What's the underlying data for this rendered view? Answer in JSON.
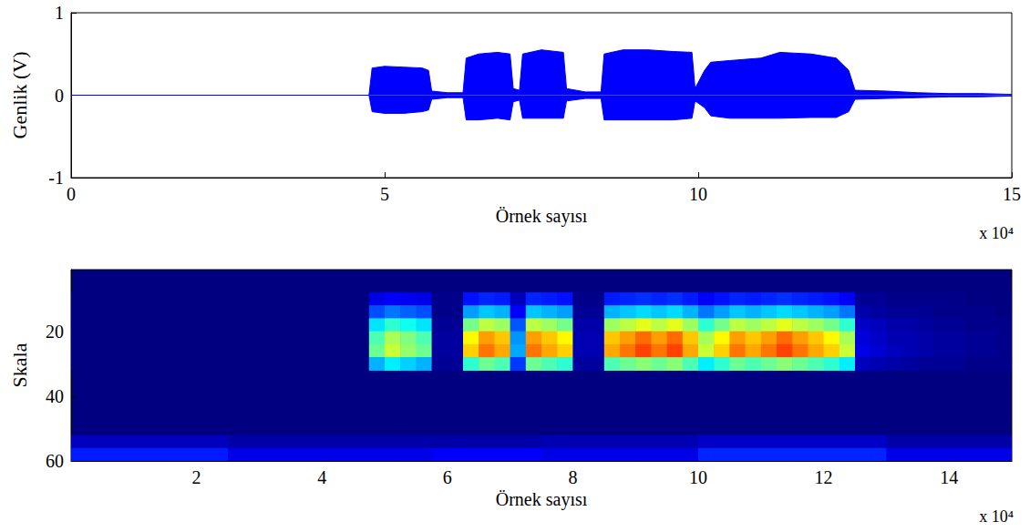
{
  "chart_data": [
    {
      "type": "line",
      "ylabel": "Genlik (V)",
      "xlabel": "Örnek sayısı",
      "x_scale_label": "x 10⁴",
      "color": "#0000ff",
      "grid": false,
      "xlim": [
        0,
        15
      ],
      "xticks": [
        0,
        5,
        10,
        15
      ],
      "ylim": [
        -1,
        1
      ],
      "yticks": [
        -1,
        0,
        1
      ],
      "x": [
        0,
        4.75,
        4.8,
        5.0,
        5.3,
        5.6,
        5.7,
        5.75,
        6.0,
        6.25,
        6.3,
        6.5,
        6.8,
        7.0,
        7.05,
        7.15,
        7.2,
        7.5,
        7.85,
        7.9,
        8.2,
        8.45,
        8.5,
        8.8,
        9.2,
        9.6,
        9.9,
        9.95,
        10.1,
        10.2,
        10.5,
        11.0,
        11.3,
        11.8,
        12.2,
        12.4,
        12.5,
        13.0,
        13.5,
        14.0,
        14.5,
        15
      ],
      "upper": [
        0,
        0,
        0.33,
        0.35,
        0.34,
        0.33,
        0.3,
        0.05,
        0.03,
        0.03,
        0.45,
        0.5,
        0.52,
        0.5,
        0.08,
        0.06,
        0.5,
        0.55,
        0.52,
        0.08,
        0.04,
        0.04,
        0.5,
        0.55,
        0.55,
        0.53,
        0.52,
        0.08,
        0.3,
        0.4,
        0.42,
        0.45,
        0.52,
        0.5,
        0.45,
        0.3,
        0.06,
        0.05,
        0.03,
        0.02,
        0.02,
        0.01
      ],
      "lower": [
        0,
        0,
        -0.2,
        -0.22,
        -0.22,
        -0.2,
        -0.18,
        -0.05,
        -0.03,
        -0.03,
        -0.3,
        -0.3,
        -0.28,
        -0.3,
        -0.08,
        -0.06,
        -0.28,
        -0.28,
        -0.28,
        -0.07,
        -0.04,
        -0.04,
        -0.3,
        -0.3,
        -0.3,
        -0.3,
        -0.28,
        -0.07,
        -0.15,
        -0.25,
        -0.28,
        -0.28,
        -0.28,
        -0.27,
        -0.27,
        -0.2,
        -0.05,
        -0.04,
        -0.03,
        -0.02,
        -0.02,
        -0.01
      ]
    },
    {
      "type": "heatmap",
      "ylabel": "Skala",
      "xlabel": "Örnek sayısı",
      "x_scale_label": "x 10⁴",
      "grid": false,
      "xlim": [
        0,
        15
      ],
      "xticks": [
        2,
        4,
        6,
        8,
        10,
        12,
        14
      ],
      "ylim": [
        1,
        60
      ],
      "yticks": [
        20,
        40,
        60
      ],
      "zlim": [
        0,
        1
      ],
      "x_edges": [
        0,
        0.25,
        0.5,
        0.75,
        1,
        1.25,
        1.5,
        1.75,
        2,
        2.25,
        2.5,
        2.75,
        3,
        3.25,
        3.5,
        3.75,
        4,
        4.25,
        4.5,
        4.75,
        5,
        5.25,
        5.5,
        5.75,
        6,
        6.25,
        6.5,
        6.75,
        7,
        7.25,
        7.5,
        7.75,
        8,
        8.25,
        8.5,
        8.75,
        9,
        9.25,
        9.5,
        9.75,
        10,
        10.25,
        10.5,
        10.75,
        11,
        11.25,
        11.5,
        11.75,
        12,
        12.25,
        12.5,
        12.75,
        13,
        13.25,
        13.5,
        13.75,
        14,
        14.25,
        14.5,
        14.75,
        15
      ],
      "rows": [
        {
          "scale": [
            8,
            12
          ],
          "values": [
            0,
            0,
            0,
            0,
            0,
            0,
            0,
            0,
            0,
            0,
            0,
            0,
            0,
            0,
            0,
            0,
            0,
            0,
            0,
            0.1,
            0.12,
            0.11,
            0.1,
            0.01,
            0.01,
            0.14,
            0.16,
            0.15,
            0.06,
            0.16,
            0.15,
            0.14,
            0.01,
            0.01,
            0.15,
            0.16,
            0.17,
            0.16,
            0.17,
            0.15,
            0.12,
            0.14,
            0.16,
            0.15,
            0.16,
            0.17,
            0.16,
            0.15,
            0.14,
            0.12,
            0.02,
            0.02,
            0.01,
            0.01,
            0.01,
            0.01,
            0.01,
            0,
            0,
            0
          ]
        },
        {
          "scale": [
            12,
            16
          ],
          "values": [
            0,
            0,
            0,
            0,
            0,
            0,
            0,
            0,
            0,
            0,
            0,
            0,
            0,
            0,
            0,
            0,
            0,
            0,
            0,
            0.2,
            0.24,
            0.22,
            0.2,
            0.01,
            0.01,
            0.28,
            0.32,
            0.3,
            0.12,
            0.32,
            0.3,
            0.28,
            0.02,
            0.02,
            0.3,
            0.32,
            0.34,
            0.32,
            0.34,
            0.3,
            0.24,
            0.28,
            0.32,
            0.3,
            0.32,
            0.34,
            0.32,
            0.3,
            0.28,
            0.24,
            0.04,
            0.03,
            0.02,
            0.02,
            0.02,
            0.01,
            0.01,
            0.01,
            0.01,
            0
          ]
        },
        {
          "scale": [
            16,
            20
          ],
          "values": [
            0,
            0,
            0,
            0,
            0,
            0,
            0,
            0,
            0,
            0,
            0,
            0,
            0,
            0,
            0,
            0,
            0,
            0,
            0,
            0.35,
            0.42,
            0.39,
            0.35,
            0.02,
            0.02,
            0.49,
            0.56,
            0.53,
            0.21,
            0.56,
            0.53,
            0.49,
            0.04,
            0.04,
            0.53,
            0.56,
            0.6,
            0.56,
            0.6,
            0.53,
            0.42,
            0.49,
            0.56,
            0.53,
            0.56,
            0.6,
            0.56,
            0.53,
            0.49,
            0.42,
            0.07,
            0.06,
            0.04,
            0.04,
            0.03,
            0.02,
            0.02,
            0.01,
            0.01,
            0.01
          ]
        },
        {
          "scale": [
            20,
            24
          ],
          "values": [
            0,
            0,
            0,
            0,
            0,
            0,
            0,
            0,
            0,
            0,
            0,
            0,
            0,
            0,
            0,
            0,
            0,
            0,
            0,
            0.45,
            0.54,
            0.5,
            0.45,
            0.03,
            0.03,
            0.63,
            0.72,
            0.68,
            0.27,
            0.72,
            0.68,
            0.63,
            0.05,
            0.05,
            0.68,
            0.72,
            0.77,
            0.72,
            0.77,
            0.68,
            0.54,
            0.63,
            0.72,
            0.68,
            0.72,
            0.77,
            0.72,
            0.68,
            0.63,
            0.54,
            0.09,
            0.07,
            0.05,
            0.05,
            0.04,
            0.03,
            0.03,
            0.02,
            0.02,
            0.01
          ]
        },
        {
          "scale": [
            24,
            28
          ],
          "values": [
            0,
            0,
            0,
            0,
            0,
            0,
            0,
            0,
            0,
            0,
            0,
            0,
            0,
            0,
            0,
            0,
            0,
            0,
            0,
            0.48,
            0.57,
            0.52,
            0.48,
            0.03,
            0.03,
            0.67,
            0.76,
            0.71,
            0.29,
            0.76,
            0.71,
            0.67,
            0.05,
            0.05,
            0.71,
            0.76,
            0.81,
            0.76,
            0.81,
            0.71,
            0.57,
            0.67,
            0.76,
            0.71,
            0.76,
            0.81,
            0.76,
            0.71,
            0.67,
            0.57,
            0.1,
            0.08,
            0.06,
            0.05,
            0.04,
            0.03,
            0.03,
            0.02,
            0.02,
            0.01
          ]
        },
        {
          "scale": [
            28,
            32
          ],
          "values": [
            0,
            0,
            0,
            0,
            0,
            0,
            0,
            0,
            0,
            0,
            0,
            0,
            0,
            0,
            0,
            0,
            0,
            0,
            0,
            0.3,
            0.36,
            0.33,
            0.3,
            0.02,
            0.02,
            0.42,
            0.48,
            0.45,
            0.18,
            0.48,
            0.45,
            0.42,
            0.03,
            0.03,
            0.45,
            0.48,
            0.51,
            0.48,
            0.51,
            0.45,
            0.36,
            0.42,
            0.48,
            0.45,
            0.48,
            0.51,
            0.48,
            0.45,
            0.42,
            0.36,
            0.06,
            0.05,
            0.04,
            0.03,
            0.02,
            0.02,
            0.02,
            0.01,
            0.01,
            0.01
          ]
        },
        {
          "scale": [
            52,
            56
          ],
          "values": [
            0.06,
            0.06,
            0.06,
            0.06,
            0.06,
            0.06,
            0.06,
            0.06,
            0.06,
            0.06,
            0.04,
            0.04,
            0.04,
            0.04,
            0.04,
            0.04,
            0.04,
            0.04,
            0.04,
            0.04,
            0.04,
            0.04,
            0.04,
            0.04,
            0.04,
            0.04,
            0.04,
            0.04,
            0.04,
            0.04,
            0.05,
            0.05,
            0.05,
            0.05,
            0.05,
            0.05,
            0.05,
            0.05,
            0.05,
            0.05,
            0.07,
            0.07,
            0.07,
            0.07,
            0.07,
            0.07,
            0.07,
            0.07,
            0.07,
            0.07,
            0.07,
            0.07,
            0.04,
            0.04,
            0.04,
            0.04,
            0.04,
            0.04,
            0.04,
            0.04
          ]
        },
        {
          "scale": [
            56,
            60
          ],
          "values": [
            0.15,
            0.15,
            0.15,
            0.15,
            0.15,
            0.15,
            0.15,
            0.15,
            0.15,
            0.15,
            0.1,
            0.1,
            0.1,
            0.1,
            0.1,
            0.1,
            0.1,
            0.1,
            0.1,
            0.1,
            0.1,
            0.1,
            0.1,
            0.12,
            0.12,
            0.12,
            0.12,
            0.12,
            0.12,
            0.12,
            0.1,
            0.1,
            0.1,
            0.1,
            0.1,
            0.1,
            0.1,
            0.1,
            0.1,
            0.1,
            0.16,
            0.16,
            0.16,
            0.16,
            0.16,
            0.16,
            0.16,
            0.16,
            0.16,
            0.16,
            0.16,
            0.16,
            0.1,
            0.1,
            0.1,
            0.1,
            0.1,
            0.1,
            0.1,
            0.1
          ]
        }
      ]
    }
  ]
}
